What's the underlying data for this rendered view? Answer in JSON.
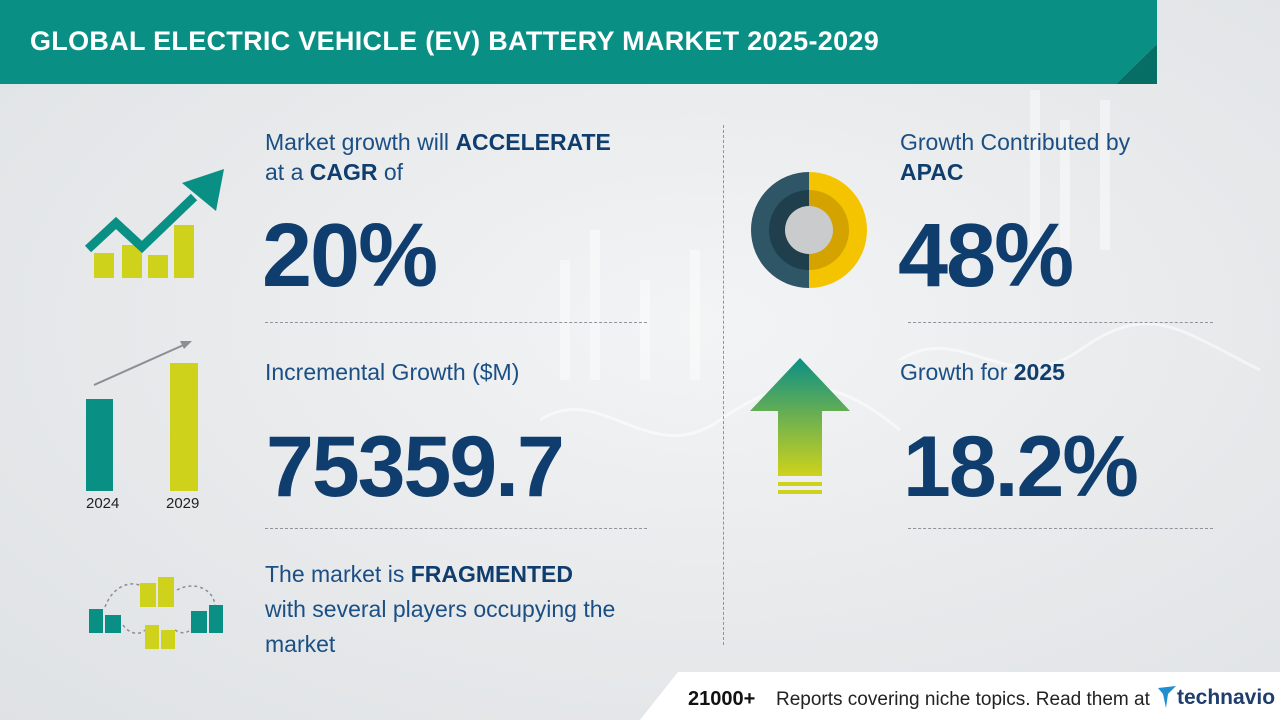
{
  "header": {
    "title": "GLOBAL ELECTRIC VEHICLE (EV) BATTERY MARKET 2025-2029",
    "color": "#0a8f85"
  },
  "cagr": {
    "line1_prefix": "Market growth will",
    "line1_emphasis": "ACCELERATE",
    "line2_prefix": "at a",
    "line2_emphasis": "CAGR",
    "line2_suffix": "of",
    "value": "20%",
    "icon": "growth-chart-icon"
  },
  "incremental": {
    "label": "Incremental Growth ($M)",
    "value": "75359.7",
    "icon": "bar-comparison-icon",
    "year_start": "2024",
    "year_end": "2029"
  },
  "fragmented": {
    "line1_prefix": "The market is",
    "line1_emphasis": "FRAGMENTED",
    "line2": "with several players occupying the",
    "line3": "market",
    "icon": "connected-buildings-icon"
  },
  "region": {
    "label": "Growth Contributed by",
    "emphasis": "APAC",
    "value": "48%",
    "icon": "donut-chart-icon"
  },
  "yoy": {
    "label": "Growth for",
    "emphasis": "2025",
    "value": "18.2%",
    "icon": "up-arrow-icon"
  },
  "footer": {
    "count": "21000+",
    "text": "Reports covering niche topics. Read them at",
    "brand": "technavio",
    "brand_icon": "technavio-logo-icon"
  },
  "colors": {
    "teal": "#0a8f85",
    "navy": "#0f3d6e",
    "lime": "#cfd21b",
    "yellow": "#f5c400"
  }
}
